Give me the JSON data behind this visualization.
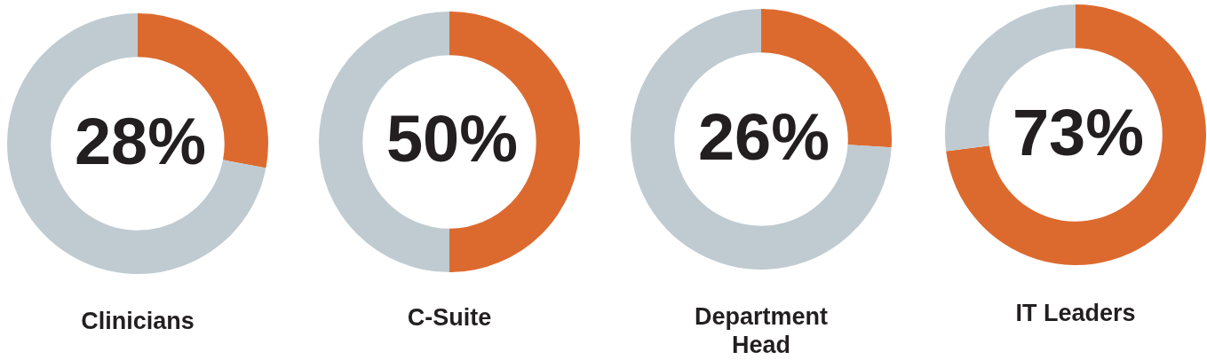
{
  "chart_data": [
    {
      "type": "donut",
      "title": "Clinicians",
      "categories": [
        null,
        null
      ],
      "values": [
        28,
        72
      ],
      "colors": [
        "#dc6a2f",
        "#c0cbd1"
      ],
      "value_labels": [
        "28%",
        null
      ]
    },
    {
      "type": "donut",
      "title": "C-Suite",
      "categories": [
        null,
        null
      ],
      "values": [
        50,
        50
      ],
      "colors": [
        "#dc6a2f",
        "#c0cbd1"
      ],
      "value_labels": [
        "50%",
        null
      ]
    },
    {
      "type": "donut",
      "title": "Department Head",
      "categories": [
        null,
        null
      ],
      "values": [
        26,
        74
      ],
      "colors": [
        "#dc6a2f",
        "#c0cbd1"
      ],
      "value_labels": [
        "26%",
        null
      ]
    },
    {
      "type": "donut",
      "title": "IT Leaders",
      "categories": [
        null,
        null
      ],
      "values": [
        73,
        27
      ],
      "colors": [
        "#dc6a2f",
        "#c0cbd1"
      ],
      "value_labels": [
        "73%",
        null
      ]
    }
  ]
}
